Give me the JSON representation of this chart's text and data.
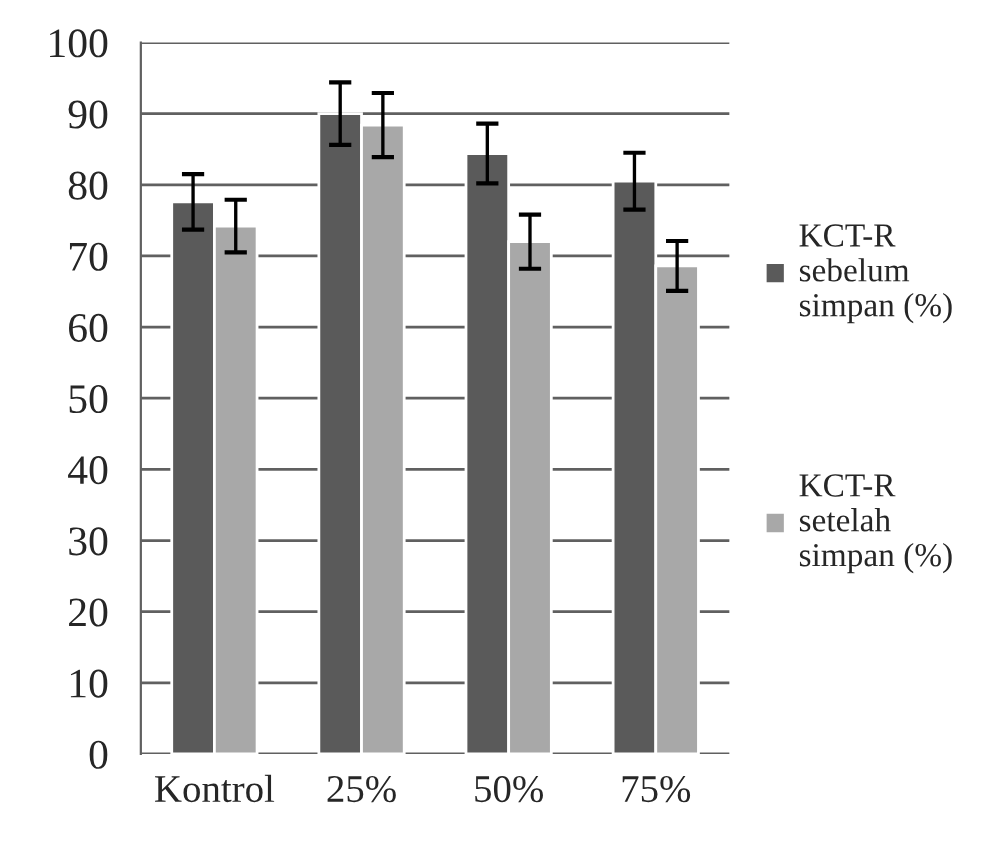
{
  "chart_data": {
    "type": "bar",
    "categories": [
      "Kontrol",
      "25%",
      "50%",
      "75%"
    ],
    "series": [
      {
        "name": "KCT-R\nsebelum\nsimpan (%)",
        "color": "#5a5a5a",
        "values": [
          77.6,
          90.0,
          84.4,
          80.5
        ],
        "errors": [
          3.9,
          4.4,
          4.2,
          4.0
        ]
      },
      {
        "name": "KCT-R\nsetelah\nsimpan (%)",
        "color": "#a8a8a8",
        "values": [
          74.2,
          88.4,
          72.0,
          68.6
        ],
        "errors": [
          3.7,
          4.5,
          3.8,
          3.5
        ]
      }
    ],
    "ylim": [
      0,
      100
    ],
    "yticks": [
      0,
      10,
      20,
      30,
      40,
      50,
      60,
      70,
      80,
      90,
      100
    ],
    "grid": "y",
    "legend": "right"
  }
}
